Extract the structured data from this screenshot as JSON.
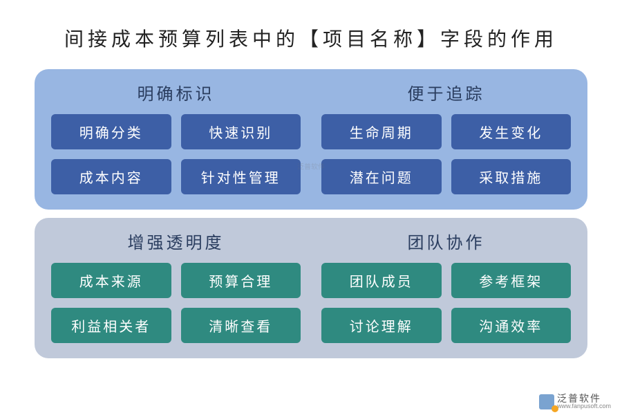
{
  "title": "间接成本预算列表中的【项目名称】字段的作用",
  "panels": [
    {
      "bg": "#98b6e2",
      "title_color": "#2a3d5f",
      "chip_bg": "#3d5fa6",
      "cols": [
        {
          "title": "明确标识",
          "chips": [
            "明确分类",
            "快速识别",
            "成本内容",
            "针对性管理"
          ]
        },
        {
          "title": "便于追踪",
          "chips": [
            "生命周期",
            "发生变化",
            "潜在问题",
            "采取措施"
          ]
        }
      ]
    },
    {
      "bg": "#c0c9da",
      "title_color": "#2a3d5f",
      "chip_bg": "#2f8a80",
      "cols": [
        {
          "title": "增强透明度",
          "chips": [
            "成本来源",
            "预算合理",
            "利益相关者",
            "清晰查看"
          ]
        },
        {
          "title": "团队协作",
          "chips": [
            "团队成员",
            "参考框架",
            "讨论理解",
            "沟通效率"
          ]
        }
      ]
    }
  ],
  "watermark": {
    "cn": "泛普软件",
    "en": "www.fanpusoft.com"
  },
  "center_mark": "泛普软件"
}
